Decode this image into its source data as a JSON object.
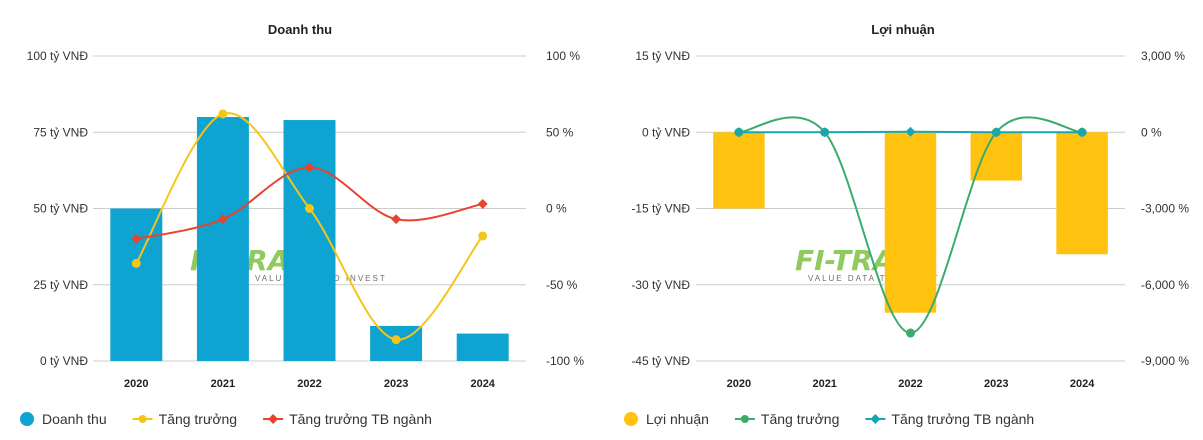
{
  "colors": {
    "blue": "#0ea3d0",
    "yellow": "#f5c518",
    "red": "#e8432e",
    "gold": "#fec20f",
    "green": "#3aab6a",
    "teal": "#17a6b4",
    "grid": "#cccccc"
  },
  "watermark": {
    "brand": "FI-TRADE",
    "tagline": "VALUE DATA TO INVEST"
  },
  "chart_data": [
    {
      "type": "bar",
      "title": "Doanh thu",
      "categories": [
        "2020",
        "2021",
        "2022",
        "2023",
        "2024"
      ],
      "y_left": {
        "ticks": [
          "100 tỷ VNĐ",
          "75 tỷ VNĐ",
          "50 tỷ VNĐ",
          "25 tỷ VNĐ",
          "0 tỷ VNĐ"
        ],
        "range": [
          0,
          100
        ]
      },
      "y_right": {
        "ticks": [
          "100 %",
          "50 %",
          "0 %",
          "-50 %",
          "-100 %"
        ],
        "range": [
          -100,
          100
        ]
      },
      "series": [
        {
          "name": "Doanh thu",
          "kind": "bar",
          "axis": "left",
          "color": "#0ea3d0",
          "values": [
            50,
            80,
            79,
            11.5,
            9
          ]
        },
        {
          "name": "Tăng trưởng",
          "kind": "line",
          "axis": "right",
          "color": "#f5c518",
          "values": [
            -36,
            62,
            0,
            -86,
            -18
          ]
        },
        {
          "name": "Tăng trưởng TB ngành",
          "kind": "line",
          "axis": "right",
          "color": "#e8432e",
          "values": [
            -20,
            -7,
            27,
            -7,
            3
          ]
        }
      ],
      "legend_position": "bottom",
      "grid": true
    },
    {
      "type": "bar",
      "title": "Lợi nhuận",
      "categories": [
        "2020",
        "2021",
        "2022",
        "2023",
        "2024"
      ],
      "y_left": {
        "ticks": [
          "15 tỷ VNĐ",
          "0 tỷ VNĐ",
          "-15 tỷ VNĐ",
          "-30 tỷ VNĐ",
          "-45 tỷ VNĐ"
        ],
        "range": [
          -45,
          15
        ]
      },
      "y_right": {
        "ticks": [
          "3,000 %",
          "0 %",
          "-3,000 %",
          "-6,000 %",
          "-9,000 %"
        ],
        "range": [
          -9000,
          3000
        ]
      },
      "series": [
        {
          "name": "Lợi nhuận",
          "kind": "bar",
          "axis": "left",
          "color": "#fec20f",
          "values": [
            -15,
            0,
            -35.5,
            -9.5,
            -24
          ]
        },
        {
          "name": "Tăng trưởng",
          "kind": "line",
          "axis": "right",
          "color": "#3aab6a",
          "values": [
            0,
            0,
            -7900,
            0,
            0
          ]
        },
        {
          "name": "Tăng trưởng TB ngành",
          "kind": "line",
          "axis": "right",
          "color": "#17a6b4",
          "values": [
            0,
            0,
            20,
            0,
            0
          ]
        }
      ],
      "legend_position": "bottom",
      "grid": true
    }
  ]
}
